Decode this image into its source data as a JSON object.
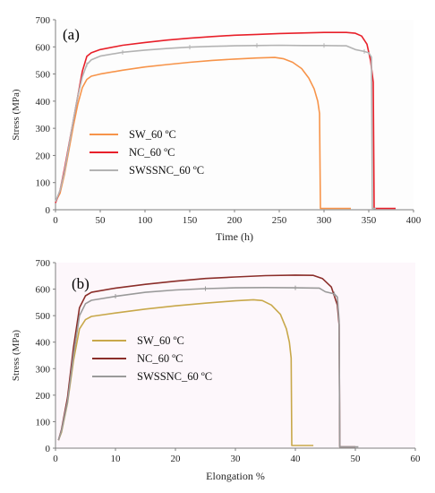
{
  "chart_data": [
    {
      "type": "line",
      "panel_label": "(a)",
      "xlabel": "Time (h)",
      "ylabel": "Stress (MPa)",
      "xlim": [
        0,
        400
      ],
      "ylim": [
        0,
        700
      ],
      "xticks": [
        0,
        50,
        100,
        150,
        200,
        250,
        300,
        350,
        400
      ],
      "yticks": [
        0,
        100,
        200,
        300,
        400,
        500,
        600,
        700
      ],
      "grid": false,
      "legend_position": "lower-left",
      "series": [
        {
          "name": "SW_60 ºC",
          "color": "#f7944a",
          "points": [
            [
              0,
              30
            ],
            [
              5,
              60
            ],
            [
              10,
              130
            ],
            [
              15,
              220
            ],
            [
              20,
              310
            ],
            [
              25,
              390
            ],
            [
              30,
              450
            ],
            [
              35,
              480
            ],
            [
              40,
              492
            ],
            [
              50,
              500
            ],
            [
              75,
              514
            ],
            [
              100,
              526
            ],
            [
              125,
              535
            ],
            [
              150,
              543
            ],
            [
              175,
              550
            ],
            [
              200,
              555
            ],
            [
              225,
              559
            ],
            [
              245,
              561
            ],
            [
              255,
              556
            ],
            [
              265,
              543
            ],
            [
              275,
              520
            ],
            [
              283,
              485
            ],
            [
              289,
              445
            ],
            [
              293,
              400
            ],
            [
              295,
              355
            ],
            [
              296,
              5
            ],
            [
              330,
              5
            ]
          ]
        },
        {
          "name": "NC_60 ºC",
          "color": "#e8202a",
          "points": [
            [
              0,
              25
            ],
            [
              5,
              70
            ],
            [
              10,
              150
            ],
            [
              15,
              240
            ],
            [
              20,
              330
            ],
            [
              25,
              420
            ],
            [
              30,
              510
            ],
            [
              35,
              565
            ],
            [
              40,
              578
            ],
            [
              50,
              590
            ],
            [
              75,
              606
            ],
            [
              100,
              616
            ],
            [
              125,
              625
            ],
            [
              150,
              632
            ],
            [
              175,
              638
            ],
            [
              200,
              643
            ],
            [
              225,
              646
            ],
            [
              250,
              649
            ],
            [
              275,
              651
            ],
            [
              300,
              653
            ],
            [
              325,
              653
            ],
            [
              335,
              650
            ],
            [
              342,
              640
            ],
            [
              348,
              610
            ],
            [
              352,
              550
            ],
            [
              355,
              470
            ],
            [
              356,
              5
            ],
            [
              380,
              5
            ]
          ]
        },
        {
          "name": "SWSSNC_60 ºC",
          "color": "#b3b3b3",
          "points": [
            [
              0,
              30
            ],
            [
              5,
              70
            ],
            [
              10,
              140
            ],
            [
              15,
              235
            ],
            [
              20,
              330
            ],
            [
              25,
              420
            ],
            [
              30,
              490
            ],
            [
              35,
              535
            ],
            [
              40,
              552
            ],
            [
              50,
              566
            ],
            [
              75,
              580
            ],
            [
              100,
              588
            ],
            [
              125,
              594
            ],
            [
              150,
              599
            ],
            [
              175,
              602
            ],
            [
              200,
              604
            ],
            [
              225,
              605
            ],
            [
              250,
              606
            ],
            [
              275,
              605
            ],
            [
              300,
              605
            ],
            [
              325,
              604
            ],
            [
              335,
              590
            ],
            [
              345,
              583
            ],
            [
              350,
              578
            ],
            [
              353,
              562
            ],
            [
              354,
              5
            ],
            [
              358,
              5
            ]
          ]
        }
      ]
    },
    {
      "type": "line",
      "panel_label": "(b)",
      "xlabel": "Elongation  %",
      "ylabel": "Stress (MPa)",
      "xlim": [
        0,
        60
      ],
      "ylim": [
        0,
        700
      ],
      "xticks": [
        0,
        10,
        20,
        30,
        40,
        50,
        60
      ],
      "yticks": [
        0,
        100,
        200,
        300,
        400,
        500,
        600,
        700
      ],
      "grid": false,
      "legend_position": "lower-left",
      "series": [
        {
          "name": "SW_60 ºC",
          "color": "#c8a84a",
          "points": [
            [
              0.5,
              30
            ],
            [
              1,
              60
            ],
            [
              2,
              170
            ],
            [
              3,
              330
            ],
            [
              4,
              450
            ],
            [
              5,
              485
            ],
            [
              6,
              497
            ],
            [
              10,
              510
            ],
            [
              15,
              525
            ],
            [
              20,
              537
            ],
            [
              25,
              547
            ],
            [
              30,
              556
            ],
            [
              33,
              560
            ],
            [
              34.5,
              557
            ],
            [
              36,
              540
            ],
            [
              37.5,
              505
            ],
            [
              38.5,
              450
            ],
            [
              39,
              400
            ],
            [
              39.3,
              340
            ],
            [
              39.4,
              10
            ],
            [
              43,
              10
            ]
          ]
        },
        {
          "name": "NC_60 ºC",
          "color": "#8b2e2a",
          "points": [
            [
              0.5,
              30
            ],
            [
              1,
              70
            ],
            [
              2,
              190
            ],
            [
              3,
              380
            ],
            [
              4,
              530
            ],
            [
              5,
              575
            ],
            [
              6,
              588
            ],
            [
              10,
              604
            ],
            [
              15,
              618
            ],
            [
              20,
              630
            ],
            [
              25,
              640
            ],
            [
              30,
              646
            ],
            [
              35,
              651
            ],
            [
              40,
              653
            ],
            [
              43,
              652
            ],
            [
              44.5,
              640
            ],
            [
              46,
              608
            ],
            [
              47,
              540
            ],
            [
              47.3,
              465
            ],
            [
              47.4,
              5
            ],
            [
              50,
              5
            ]
          ]
        },
        {
          "name": "SWSSNC_60 ºC",
          "color": "#9a9a9a",
          "points": [
            [
              0.5,
              30
            ],
            [
              1,
              65
            ],
            [
              2,
              175
            ],
            [
              3,
              350
            ],
            [
              4,
              500
            ],
            [
              5,
              545
            ],
            [
              6,
              558
            ],
            [
              10,
              573
            ],
            [
              15,
              588
            ],
            [
              20,
              597
            ],
            [
              25,
              602
            ],
            [
              30,
              605
            ],
            [
              35,
              606
            ],
            [
              40,
              605
            ],
            [
              44,
              604
            ],
            [
              45,
              590
            ],
            [
              46.5,
              582
            ],
            [
              47,
              570
            ],
            [
              47.3,
              480
            ],
            [
              47.4,
              5
            ],
            [
              50.5,
              5
            ]
          ]
        }
      ]
    }
  ]
}
